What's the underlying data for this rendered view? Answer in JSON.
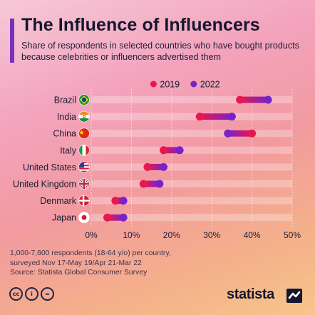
{
  "header": {
    "title": "The Influence of Influencers",
    "subtitle": "Share of respondents in selected countries who have bought products because celebrities or influencers advertised them"
  },
  "chart_data": {
    "type": "dumbbell",
    "legend_position": "top",
    "categories": [
      "Brazil",
      "India",
      "China",
      "Italy",
      "United States",
      "United Kingdom",
      "Denmark",
      "Japan"
    ],
    "flags": [
      "brazil",
      "india",
      "china",
      "italy",
      "united-states",
      "united-kingdom",
      "denmark",
      "japan"
    ],
    "series": [
      {
        "name": "2019",
        "color": "#e8174e",
        "values": [
          37,
          27,
          40,
          18,
          14,
          13,
          6,
          4
        ]
      },
      {
        "name": "2022",
        "color": "#7a22c9",
        "values": [
          44,
          35,
          34,
          22,
          18,
          17,
          8,
          8
        ]
      }
    ],
    "xlim": [
      0,
      50
    ],
    "ticks": [
      0,
      10,
      20,
      30,
      40,
      50
    ],
    "tick_labels": [
      "0%",
      "10%",
      "20%",
      "30%",
      "40%",
      "50%"
    ],
    "grid": true
  },
  "footer": {
    "note_line1": "1,000-7,600 respondents (18-64 y/o) per country,",
    "note_line2": "surveyed Nov 17-May 19/Apr 21-Mar 22",
    "source": "Source: Statista Global Consumer Survey"
  },
  "license_icons": [
    "cc",
    "i",
    "="
  ],
  "brand": {
    "name": "statista"
  }
}
